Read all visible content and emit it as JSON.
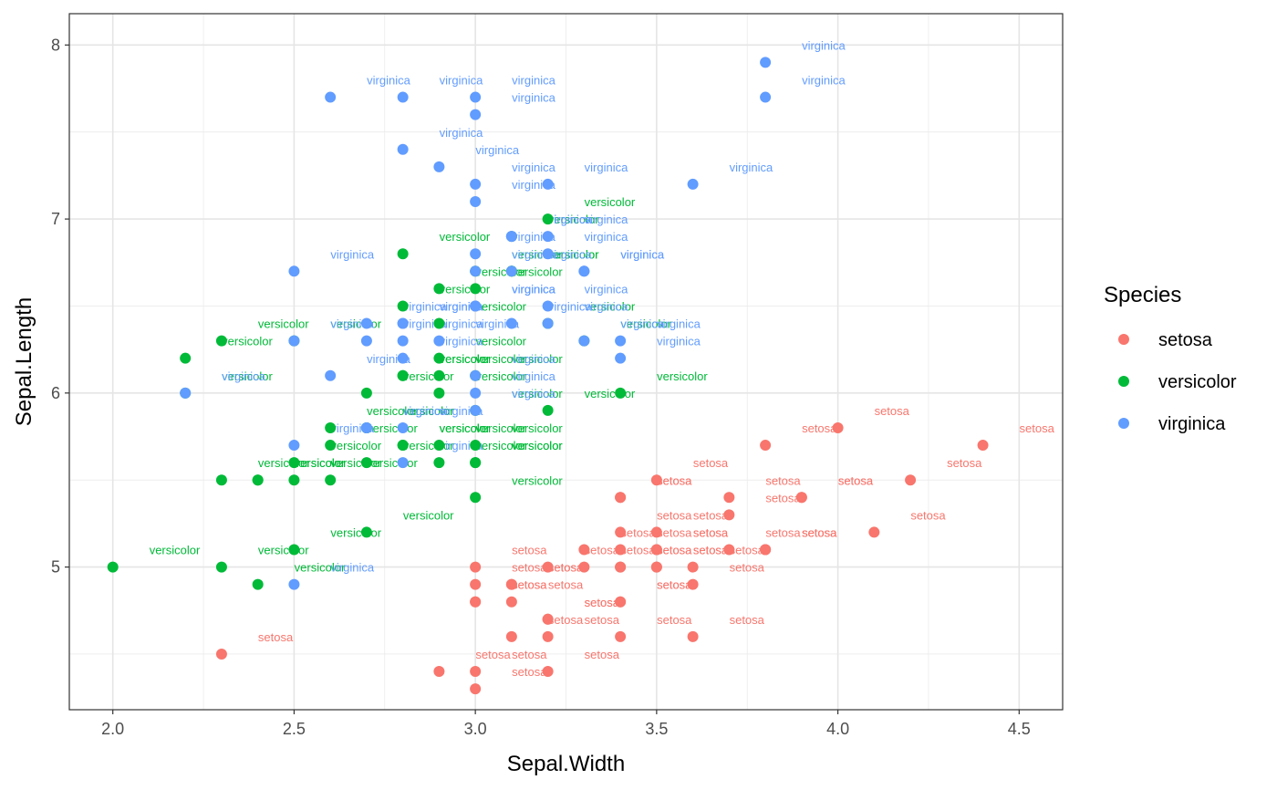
{
  "chart_data": {
    "type": "scatter",
    "xlabel": "Sepal.Width",
    "ylabel": "Sepal.Length",
    "xlim": [
      1.88,
      4.62
    ],
    "ylim": [
      4.18,
      8.18
    ],
    "x_ticks": [
      2.0,
      2.5,
      3.0,
      3.5,
      4.0,
      4.5
    ],
    "x_tick_labels": [
      "2.0",
      "2.5",
      "3.0",
      "3.5",
      "4.0",
      "4.5"
    ],
    "y_ticks": [
      5,
      6,
      7,
      8
    ],
    "y_tick_labels": [
      "5",
      "6",
      "7",
      "8"
    ],
    "grid": true,
    "point_labels": true,
    "legend": {
      "title": "Species",
      "position": "right",
      "entries": [
        {
          "label": "setosa",
          "color": "#F8766D"
        },
        {
          "label": "versicolor",
          "color": "#00BA38"
        },
        {
          "label": "virginica",
          "color": "#619CFF"
        }
      ]
    },
    "series": [
      {
        "name": "setosa",
        "color": "#F8766D",
        "x": [
          3.5,
          3.0,
          3.2,
          3.1,
          3.6,
          3.9,
          3.4,
          3.4,
          2.9,
          3.1,
          3.7,
          3.4,
          3.0,
          3.0,
          4.0,
          4.4,
          3.9,
          3.5,
          3.8,
          3.8,
          3.4,
          3.7,
          3.6,
          3.3,
          3.4,
          3.0,
          3.4,
          3.5,
          3.4,
          3.2,
          3.1,
          3.4,
          4.1,
          4.2,
          3.1,
          3.2,
          3.5,
          3.6,
          3.0,
          3.4,
          3.5,
          2.3,
          3.2,
          3.5,
          3.8,
          3.0,
          3.8,
          3.2,
          3.7,
          3.3
        ],
        "y": [
          5.1,
          4.9,
          4.7,
          4.6,
          5.0,
          5.4,
          4.6,
          5.0,
          4.4,
          4.9,
          5.4,
          4.8,
          4.8,
          4.3,
          5.8,
          5.7,
          5.4,
          5.1,
          5.7,
          5.1,
          5.4,
          5.1,
          4.6,
          5.1,
          4.8,
          5.0,
          5.0,
          5.2,
          5.2,
          4.7,
          4.8,
          5.4,
          5.2,
          5.5,
          4.9,
          5.0,
          5.5,
          4.9,
          4.4,
          5.1,
          5.0,
          4.5,
          4.4,
          5.0,
          5.1,
          4.8,
          5.1,
          4.6,
          5.3,
          5.0
        ]
      },
      {
        "name": "versicolor",
        "color": "#00BA38",
        "x": [
          3.2,
          3.2,
          3.1,
          2.3,
          2.8,
          2.8,
          3.3,
          2.4,
          2.9,
          2.7,
          2.0,
          3.0,
          2.2,
          2.9,
          2.9,
          3.1,
          3.0,
          2.7,
          2.2,
          2.5,
          3.2,
          2.8,
          2.5,
          2.8,
          2.9,
          3.0,
          2.8,
          3.0,
          2.9,
          2.6,
          2.4,
          2.4,
          2.7,
          2.7,
          3.0,
          3.4,
          3.1,
          2.3,
          3.0,
          2.5,
          2.6,
          3.0,
          2.6,
          2.3,
          2.7,
          3.0,
          2.9,
          2.9,
          2.5,
          2.8
        ],
        "y": [
          7.0,
          6.4,
          6.9,
          5.5,
          6.5,
          5.7,
          6.3,
          4.9,
          6.6,
          5.2,
          5.0,
          5.9,
          6.0,
          6.1,
          5.6,
          6.7,
          5.6,
          5.8,
          6.2,
          5.6,
          5.9,
          6.1,
          6.3,
          6.1,
          6.4,
          6.6,
          6.8,
          6.7,
          6.0,
          5.7,
          5.5,
          5.5,
          5.8,
          6.0,
          5.4,
          6.0,
          6.7,
          6.3,
          5.6,
          5.5,
          5.5,
          6.1,
          5.8,
          5.0,
          5.6,
          5.7,
          5.7,
          6.2,
          5.1,
          5.7
        ]
      },
      {
        "name": "virginica",
        "color": "#619CFF",
        "x": [
          3.3,
          2.7,
          3.0,
          2.9,
          3.0,
          3.0,
          2.5,
          2.9,
          2.5,
          3.6,
          3.2,
          2.7,
          3.0,
          2.5,
          2.8,
          3.2,
          3.0,
          3.8,
          2.6,
          2.2,
          3.2,
          2.8,
          2.8,
          2.7,
          3.3,
          3.2,
          2.8,
          3.0,
          2.8,
          3.0,
          2.8,
          3.8,
          2.8,
          2.8,
          2.6,
          3.0,
          3.4,
          3.1,
          3.0,
          3.1,
          3.1,
          3.1,
          2.7,
          3.2,
          3.3,
          3.0,
          2.5,
          3.0,
          3.4,
          3.0
        ],
        "y": [
          6.3,
          5.8,
          7.1,
          6.3,
          6.5,
          7.6,
          4.9,
          7.3,
          6.7,
          7.2,
          6.5,
          6.4,
          6.8,
          5.7,
          5.8,
          6.4,
          6.5,
          7.7,
          7.7,
          6.0,
          6.9,
          5.6,
          7.7,
          6.3,
          6.7,
          7.2,
          6.2,
          6.1,
          6.4,
          7.2,
          7.4,
          7.9,
          6.4,
          6.3,
          6.1,
          7.7,
          6.3,
          6.4,
          6.0,
          6.9,
          6.7,
          6.9,
          5.8,
          6.8,
          6.7,
          6.7,
          6.3,
          6.5,
          6.2,
          5.9
        ]
      }
    ]
  }
}
